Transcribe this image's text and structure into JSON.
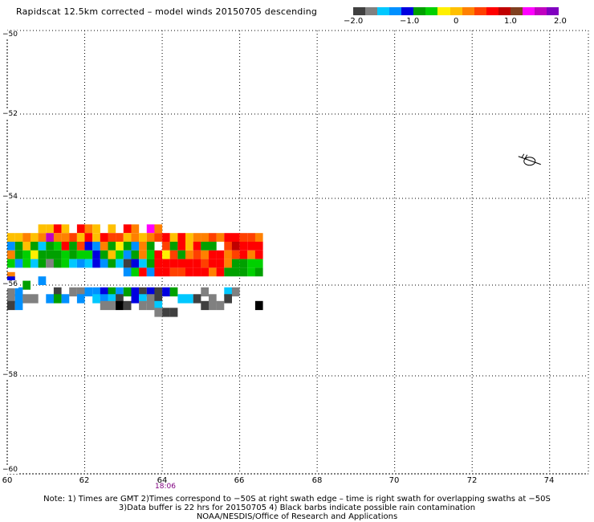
{
  "title": "Rapidscat 12.5km corrected – model winds 20150705 descending",
  "colorbar": {
    "colors": [
      "#404040",
      "#808080",
      "#00c8ff",
      "#0090ff",
      "#0000e0",
      "#00a000",
      "#00d000",
      "#fff000",
      "#ffc000",
      "#ff8000",
      "#ff4000",
      "#ff0000",
      "#c00000",
      "#804020",
      "#ff00ff",
      "#c000c0",
      "#8000c0"
    ],
    "labels": [
      "−2.0",
      "−1.0",
      "0",
      "1.0",
      "2.0"
    ]
  },
  "axes": {
    "y_labels": [
      "−50",
      "−52",
      "−54",
      "−56",
      "−58",
      "−60"
    ],
    "x_labels": [
      "60",
      "62",
      "64",
      "66",
      "68",
      "70",
      "72",
      "74"
    ]
  },
  "time_label": "18:06",
  "notes": [
    "Note: 1) Times are GMT 2)Times correspond to −50S at right swath edge – time is right swath for overlapping swaths at −50S",
    "3)Data buffer is 22 hrs for 20150705 4) Black barbs indicate possible rain contamination",
    "NOAA/NESDIS/Office of Research and Applications"
  ],
  "chart_data": {
    "type": "heatmap",
    "variable": "corrected - model wind speed difference",
    "colorbar_range": [
      -2.0,
      2.0
    ],
    "lon_range": [
      60,
      75
    ],
    "lat_range": [
      -60,
      -50
    ],
    "grid_lines": true,
    "cell_size_deg": 0.2,
    "rows": [
      {
        "lat": -54.7,
        "lon_start": 60.8,
        "values": [
          -0.1,
          -0.1,
          0.8,
          -0.1,
          null,
          0.6,
          0.2,
          -0.1,
          null,
          -0.1,
          null,
          0.6,
          0.2,
          null,
          1.4,
          0.3
        ]
      },
      {
        "lat": -54.9,
        "lon_start": 60.0,
        "values": [
          0.1,
          0.1,
          0.2,
          -0.1,
          0.2,
          1.6,
          0.3,
          0.2,
          0.4,
          0.1,
          0.6,
          0.1,
          0.6,
          0.5,
          0.5,
          0.1,
          0.3,
          0.1,
          0.3,
          0.5,
          0.6,
          0.1,
          0.6,
          0.1,
          0.3,
          0.2,
          0.5,
          0.3,
          0.6,
          0.7,
          0.4,
          0.4,
          0.3
        ]
      },
      {
        "lat": -55.1,
        "lon_start": 60.0,
        "values": [
          -1.1,
          -0.6,
          0.1,
          -0.8,
          -1.3,
          -0.7,
          -0.5,
          0.7,
          -0.8,
          0.5,
          -0.9,
          -1.2,
          0.2,
          -0.6,
          -0.3,
          -0.6,
          -1.2,
          0.2,
          -0.6,
          null,
          0.4,
          -0.6,
          0.6,
          0.1,
          0.6,
          -0.7,
          -0.8,
          null,
          0.5,
          1.0,
          0.8,
          0.6,
          0.8
        ]
      },
      {
        "lat": -55.3,
        "lon_start": 60.0,
        "values": [
          0.3,
          -0.7,
          -0.5,
          -0.3,
          -0.6,
          -0.6,
          -0.7,
          -0.5,
          -0.6,
          -0.4,
          -0.5,
          -1.0,
          -0.8,
          0.1,
          -0.5,
          -1.2,
          -0.6,
          0.2,
          -0.5,
          0.8,
          -0.2,
          0.5,
          -0.8,
          0.2,
          0.5,
          0.3,
          0.6,
          0.7,
          0.3,
          0.4,
          0.6,
          0.2,
          0.8
        ]
      },
      {
        "lat": -55.5,
        "lon_start": 60.0,
        "values": [
          -0.4,
          -1.2,
          -0.5,
          -1.3,
          -0.6,
          -1.6,
          -0.7,
          -0.5,
          -1.3,
          -1.1,
          -1.3,
          -0.9,
          -1.2,
          -0.6,
          -1.3,
          -1.9,
          -1.0,
          -1.4,
          -0.8,
          0.6,
          0.6,
          0.8,
          0.6,
          0.8,
          0.6,
          0.5,
          0.8,
          0.6,
          0.2,
          -0.6,
          -0.7,
          -0.5,
          -0.5
        ]
      },
      {
        "lat": -55.7,
        "lon_start": 60.0,
        "values": [
          null,
          null,
          null,
          null,
          null,
          null,
          null,
          null,
          null,
          null,
          null,
          null,
          null,
          null,
          null,
          -1.2,
          -0.4,
          0.6,
          -1.1,
          0.8,
          0.6,
          0.4,
          0.5,
          0.6,
          0.7,
          0.6,
          0.3,
          0.8,
          -0.7,
          -0.6,
          -0.8,
          -0.5,
          -0.6
        ]
      },
      {
        "lat": -55.8,
        "lon_start": 60.0,
        "values": [
          0.3,
          null,
          null,
          null,
          null,
          null,
          null,
          null,
          null,
          null,
          null,
          null,
          null,
          null,
          null,
          null,
          null,
          null,
          null,
          null,
          null,
          null,
          null,
          null,
          null,
          null,
          null,
          null,
          null,
          null,
          null,
          null,
          null
        ]
      },
      {
        "lat": -55.9,
        "lon_start": 60.0,
        "values": [
          -0.9,
          null,
          null,
          null,
          -1.2,
          null,
          null,
          null,
          null,
          null,
          null,
          null,
          null,
          null,
          null,
          null,
          null,
          null,
          null,
          null,
          null,
          null,
          null,
          null,
          null,
          null,
          null,
          null,
          null,
          null,
          null,
          null,
          null
        ]
      },
      {
        "lat": -56.0,
        "lon_start": 60.0,
        "values": [
          null,
          null,
          -0.8,
          null,
          null,
          null,
          null,
          null,
          null,
          null,
          null,
          null,
          null,
          null,
          null,
          null,
          null,
          null,
          null,
          null,
          null,
          null,
          null,
          null,
          null,
          null,
          null,
          null,
          null,
          null,
          null,
          null,
          null
        ]
      },
      {
        "lat": -56.1,
        "lon_start": 60.0,
        "values": [
          null,
          null,
          null,
          null,
          null,
          null,
          null,
          null,
          null,
          null,
          null,
          null,
          null,
          null,
          null,
          null,
          null,
          null,
          null,
          null,
          null,
          null,
          null,
          null,
          null,
          null,
          null,
          null,
          null,
          null,
          null,
          null,
          null
        ]
      },
      {
        "lat": -56.15,
        "lon_start": 60.0,
        "values": [
          -1.6,
          -1.1,
          null,
          null,
          null,
          null,
          -1.9,
          null,
          -1.7,
          -1.6,
          -1.1,
          -1.2,
          -1.0,
          -0.7,
          -1.1,
          -0.6,
          -1.0,
          -1.8,
          -0.9,
          -1.9,
          -1.0,
          -0.7,
          null,
          null,
          null,
          -1.6,
          null,
          null,
          -1.4,
          -1.6,
          null,
          null,
          null
        ]
      },
      {
        "lat": -56.3,
        "lon_start": 60.0,
        "values": [
          -1.6,
          -1.2,
          -1.7,
          -1.6,
          null,
          -1.2,
          -0.6,
          -1.2,
          null,
          -1.1,
          null,
          -1.5,
          -1.1,
          -1.4,
          -1.9,
          null,
          -1.0,
          -1.5,
          -1.7,
          -1.9,
          null,
          null,
          -1.4,
          -1.5,
          -1.8,
          null,
          -1.6,
          null,
          -1.8,
          null,
          null,
          null,
          null
        ]
      },
      {
        "lat": -56.45,
        "lon_start": 60.0,
        "values": [
          -1.8,
          -1.1,
          null,
          null,
          null,
          null,
          null,
          null,
          null,
          null,
          null,
          null,
          -1.7,
          -1.7,
          -2.3,
          -1.9,
          null,
          -1.6,
          -1.7,
          -1.3,
          null,
          null,
          null,
          null,
          null,
          -1.9,
          -1.7,
          -1.6,
          null,
          null,
          null,
          null,
          -2.5
        ]
      },
      {
        "lat": -56.6,
        "lon_start": 60.0,
        "values": [
          null,
          null,
          null,
          null,
          null,
          null,
          null,
          null,
          null,
          null,
          null,
          null,
          null,
          null,
          null,
          null,
          null,
          null,
          null,
          -1.7,
          -1.9,
          -1.8,
          null,
          null,
          null,
          null,
          null,
          null,
          null,
          null,
          null,
          null,
          null
        ]
      }
    ],
    "rain_flag_barbs": [
      {
        "lat": -53.1,
        "lon": 73.4
      }
    ]
  }
}
